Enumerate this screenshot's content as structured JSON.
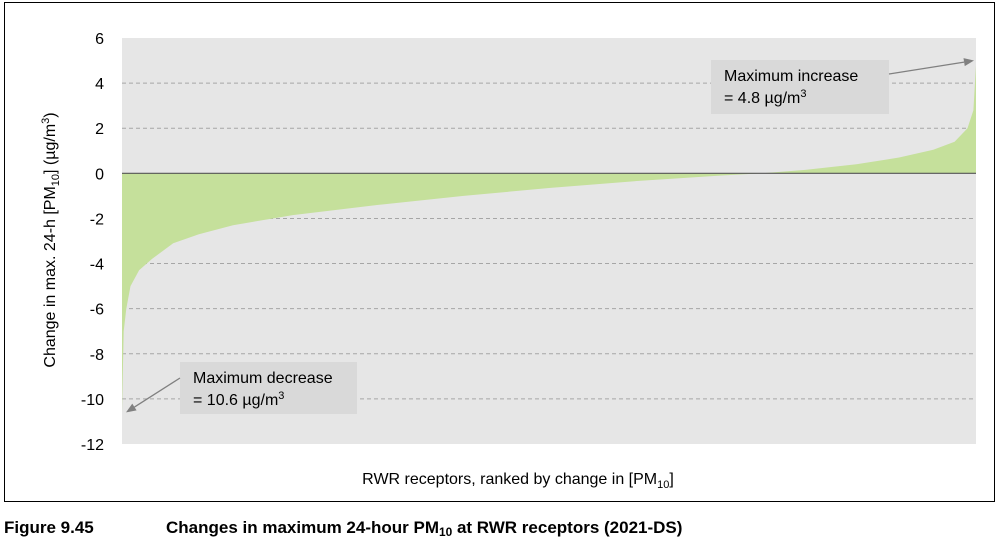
{
  "chart_data": {
    "type": "area",
    "ylabel": {
      "pre": "Change in max. 24-h [PM",
      "sub": "10",
      "post": "] (µg/m",
      "sup": "3",
      "end": ")"
    },
    "xlabel": {
      "pre": "RWR receptors, ranked by change in [PM",
      "sub": "10",
      "post": "]"
    },
    "ylim": [
      -12,
      6
    ],
    "yticks": [
      "6",
      "4",
      "2",
      "0",
      "-2",
      "-4",
      "-6",
      "-8",
      "-10",
      "-12"
    ],
    "grid": true,
    "fill_color": "#c5e09b",
    "plot_bg": "#e6e6e6",
    "x_count": 1000,
    "profile": [
      [
        0,
        -10.6
      ],
      [
        2,
        -7
      ],
      [
        5,
        -6
      ],
      [
        10,
        -5
      ],
      [
        20,
        -4.3
      ],
      [
        35,
        -3.8
      ],
      [
        60,
        -3.1
      ],
      [
        90,
        -2.7
      ],
      [
        130,
        -2.3
      ],
      [
        200,
        -1.85
      ],
      [
        300,
        -1.4
      ],
      [
        400,
        -1.0
      ],
      [
        500,
        -0.65
      ],
      [
        600,
        -0.35
      ],
      [
        700,
        -0.1
      ],
      [
        750,
        0
      ],
      [
        800,
        0.15
      ],
      [
        860,
        0.4
      ],
      [
        910,
        0.7
      ],
      [
        950,
        1.05
      ],
      [
        975,
        1.4
      ],
      [
        990,
        2.0
      ],
      [
        997,
        2.8
      ],
      [
        1000,
        4.8
      ]
    ],
    "annotations": [
      {
        "line1": "Maximum increase",
        "line2_pre": "= 4.8 µg/m",
        "line2_sup": "3",
        "target": [
          1000,
          5.0
        ]
      },
      {
        "line1": "Maximum decrease",
        "line2_pre": "= 10.6 µg/m",
        "line2_sup": "3",
        "target": [
          0,
          -10.6
        ]
      }
    ]
  },
  "caption": {
    "number": "Figure 9.45",
    "text_pre": "Changes in maximum 24-hour PM",
    "text_sub": "10",
    "text_post": " at RWR receptors (2021-DS)"
  }
}
